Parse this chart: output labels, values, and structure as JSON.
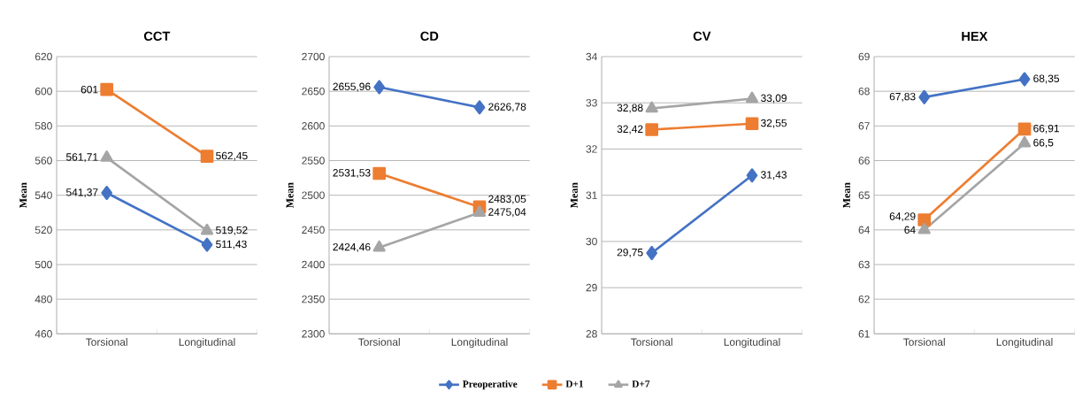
{
  "chart_data": [
    {
      "type": "line",
      "title": "CCT",
      "ylabel": "Mean",
      "categories": [
        "Torsional",
        "Longitudinal"
      ],
      "ylim": [
        460,
        620
      ],
      "yticks": [
        460,
        480,
        500,
        520,
        540,
        560,
        580,
        600,
        620
      ],
      "grid": "y",
      "legend": "bottom",
      "series": [
        {
          "name": "Preoperative",
          "color": "#4472c4",
          "marker": "diamond",
          "values": [
            541.37,
            511.43
          ],
          "value_labels": [
            "541,37",
            "511,43"
          ]
        },
        {
          "name": "D+1",
          "color": "#ed7d31",
          "marker": "square",
          "values": [
            601,
            562.45
          ],
          "value_labels": [
            "601",
            "562,45"
          ]
        },
        {
          "name": "D+7",
          "color": "#a5a5a5",
          "marker": "triangle",
          "values": [
            561.71,
            519.52
          ],
          "value_labels": [
            "561,71",
            "519,52"
          ]
        }
      ]
    },
    {
      "type": "line",
      "title": "CD",
      "ylabel": "Mean",
      "categories": [
        "Torsional",
        "Longitudinal"
      ],
      "ylim": [
        2300,
        2700
      ],
      "yticks": [
        2300,
        2350,
        2400,
        2450,
        2500,
        2550,
        2600,
        2650,
        2700
      ],
      "grid": "y",
      "series": [
        {
          "color": "#4472c4",
          "marker": "diamond",
          "values": [
            2655.96,
            2626.78
          ],
          "value_labels": [
            "2655,96",
            "2626,78"
          ]
        },
        {
          "color": "#ed7d31",
          "marker": "square",
          "values": [
            2531.53,
            2483.05
          ],
          "value_labels": [
            "2531,53",
            "2483,05"
          ]
        },
        {
          "color": "#a5a5a5",
          "marker": "triangle",
          "values": [
            2424.46,
            2475.04
          ],
          "value_labels": [
            "2424,46",
            "2475,04"
          ]
        }
      ]
    },
    {
      "type": "line",
      "title": "CV",
      "ylabel": "Mean",
      "categories": [
        "Torsional",
        "Longitudinal"
      ],
      "ylim": [
        28,
        34
      ],
      "yticks": [
        28,
        29,
        30,
        31,
        32,
        33,
        34
      ],
      "grid": "y",
      "series": [
        {
          "color": "#4472c4",
          "marker": "diamond",
          "values": [
            29.75,
            31.43
          ],
          "value_labels": [
            "29,75",
            "31,43"
          ]
        },
        {
          "color": "#ed7d31",
          "marker": "square",
          "values": [
            32.42,
            32.55
          ],
          "value_labels": [
            "32,42",
            "32,55"
          ]
        },
        {
          "color": "#a5a5a5",
          "marker": "triangle",
          "values": [
            32.88,
            33.09
          ],
          "value_labels": [
            "32,88",
            "33,09"
          ]
        }
      ]
    },
    {
      "type": "line",
      "title": "HEX",
      "ylabel": "Mean",
      "categories": [
        "Torsional",
        "Longitudinal"
      ],
      "ylim": [
        61,
        69
      ],
      "yticks": [
        61,
        62,
        63,
        64,
        65,
        66,
        67,
        68,
        69
      ],
      "grid": "y",
      "series": [
        {
          "color": "#4472c4",
          "marker": "diamond",
          "values": [
            67.83,
            68.35
          ],
          "value_labels": [
            "67,83",
            "68,35"
          ]
        },
        {
          "color": "#ed7d31",
          "marker": "square",
          "values": [
            64.29,
            66.91
          ],
          "value_labels": [
            "64,29",
            "66,91"
          ]
        },
        {
          "color": "#a5a5a5",
          "marker": "triangle",
          "values": [
            64,
            66.5
          ],
          "value_labels": [
            "64",
            "66,5"
          ]
        }
      ]
    }
  ]
}
